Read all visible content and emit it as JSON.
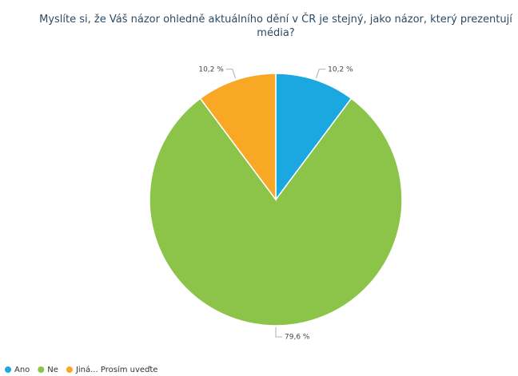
{
  "chart_data": {
    "type": "pie",
    "title": "Myslíte si, že Váš názor ohledně aktuálního dění v ČR je stejný, jako názor, který prezentují média?",
    "categories": [
      "Ano",
      "Ne",
      "Jiná... Prosím uveďte"
    ],
    "values": [
      10.2,
      79.6,
      10.2
    ],
    "value_labels": [
      "10,2 %",
      "79,6 %",
      "10,2 %"
    ],
    "colors": [
      "#1ba8e1",
      "#8cc44a",
      "#f9a825"
    ],
    "legend": "bottom-left"
  }
}
